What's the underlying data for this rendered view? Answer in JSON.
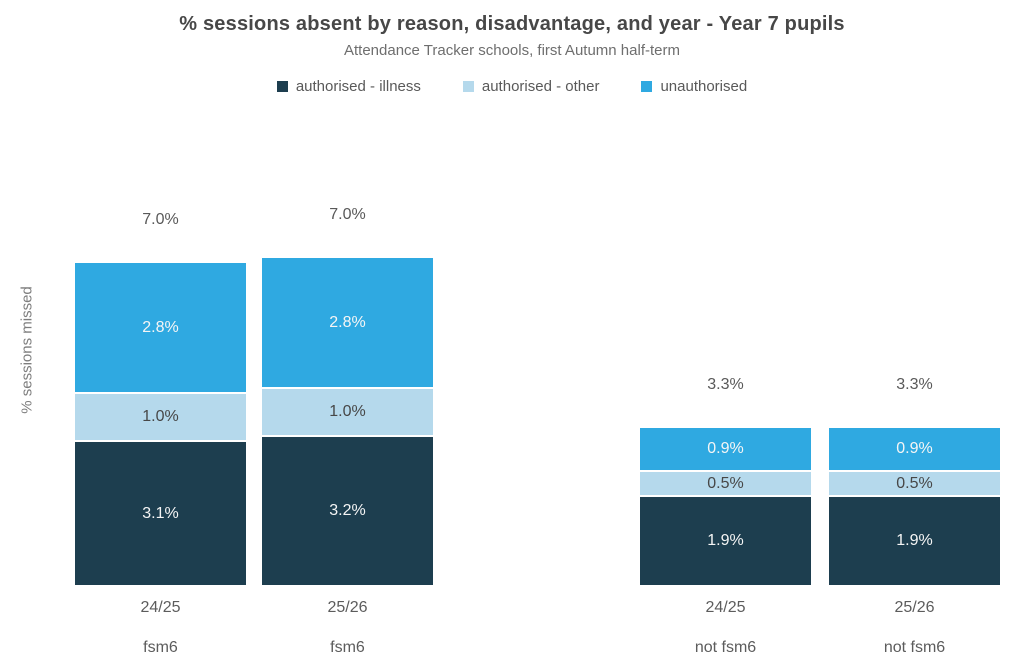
{
  "chart_data": {
    "type": "bar",
    "stacked": true,
    "title": "% sessions absent by reason, disadvantage, and year - Year 7 pupils",
    "subtitle": "Attendance Tracker schools, first Autumn half-term",
    "ylabel": "% sessions missed",
    "xlabel": "",
    "ylim": [
      0,
      7
    ],
    "grid": false,
    "legend_position": "top",
    "categories": [
      {
        "year": "24/25",
        "group": "fsm6"
      },
      {
        "year": "25/26",
        "group": "fsm6"
      },
      {
        "year": "24/25",
        "group": "not fsm6"
      },
      {
        "year": "25/26",
        "group": "not fsm6"
      }
    ],
    "series": [
      {
        "name": "authorised - illness",
        "color": "#1d3e4f",
        "label_color": "#f5f5f5",
        "values": [
          3.1,
          3.2,
          1.9,
          1.9
        ],
        "labels": [
          "3.1%",
          "3.2%",
          "1.9%",
          "1.9%"
        ]
      },
      {
        "name": "authorised - other",
        "color": "#b5d9ec",
        "label_color": "#474747",
        "values": [
          1.0,
          1.0,
          0.5,
          0.5
        ],
        "labels": [
          "1.0%",
          "1.0%",
          "0.5%",
          "0.5%"
        ]
      },
      {
        "name": "unauthorised",
        "color": "#2fa9e1",
        "label_color": "#f5f5f5",
        "values": [
          2.8,
          2.8,
          0.9,
          0.9
        ],
        "labels": [
          "2.8%",
          "2.8%",
          "0.9%",
          "0.9%"
        ]
      }
    ],
    "totals": [
      "7.0%",
      "7.0%",
      "3.3%",
      "3.3%"
    ]
  }
}
